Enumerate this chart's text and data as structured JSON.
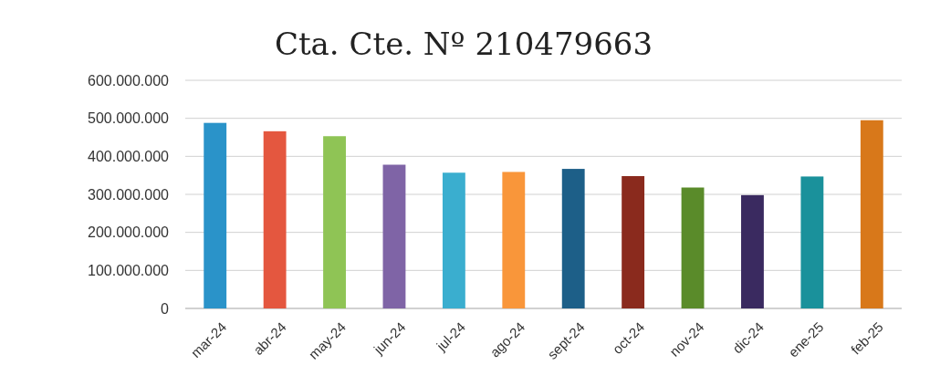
{
  "chart_data": {
    "type": "bar",
    "title": "Cta. Cte. Nº 210479663",
    "categories": [
      "mar-24",
      "abr-24",
      "may-24",
      "jun-24",
      "jul-24",
      "ago-24",
      "sept-24",
      "oct-24",
      "nov-24",
      "dic-24",
      "ene-25",
      "feb-25"
    ],
    "values": [
      488000000,
      466000000,
      453000000,
      378000000,
      357000000,
      359000000,
      367000000,
      348000000,
      318000000,
      298000000,
      347000000,
      495000000
    ],
    "colors": [
      "#2a93c9",
      "#e4573f",
      "#8fc455",
      "#7f64a6",
      "#3aaecf",
      "#f9963a",
      "#1d5f88",
      "#8a2a1d",
      "#5a8b2a",
      "#3a2a60",
      "#1a919b",
      "#d8781a"
    ],
    "ylim": [
      0,
      600000000
    ],
    "yticks": [
      {
        "value": 0,
        "label": "0"
      },
      {
        "value": 100000000,
        "label": "100.000.000"
      },
      {
        "value": 200000000,
        "label": "200.000.000"
      },
      {
        "value": 300000000,
        "label": "300.000.000"
      },
      {
        "value": 400000000,
        "label": "400.000.000"
      },
      {
        "value": 500000000,
        "label": "500.000.000"
      },
      {
        "value": 600000000,
        "label": "600.000.000"
      }
    ],
    "grid": "y"
  }
}
